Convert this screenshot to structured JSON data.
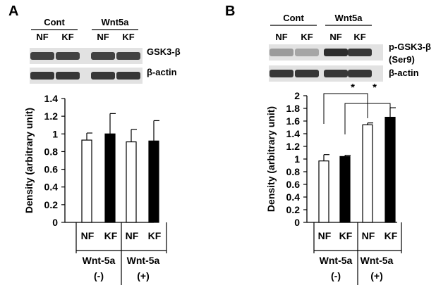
{
  "panels": [
    {
      "panel_label": "A",
      "blot": {
        "groups": [
          "Cont",
          "Wnt5a"
        ],
        "lanes": [
          "NF",
          "KF",
          "NF",
          "KF"
        ],
        "bands": [
          "GSK3-β",
          "β-actin"
        ],
        "intensity": [
          [
            0.85,
            0.85,
            0.85,
            0.85
          ],
          [
            0.9,
            0.9,
            0.9,
            0.9
          ]
        ]
      },
      "chart_data": {
        "type": "bar",
        "ylabel": "Density (arbitrary unit)",
        "ylim": [
          0,
          1.4
        ],
        "yticks": [
          "0",
          "0.2",
          "0.4",
          "0.6",
          "0.8",
          "1",
          "1.2",
          "1.4"
        ],
        "categories": [
          "NF",
          "KF",
          "NF",
          "KF"
        ],
        "groups": [
          {
            "label": "Wnt-5a",
            "sub": "(-)"
          },
          {
            "label": "Wnt-5a",
            "sub": "(+)"
          }
        ],
        "values": [
          0.93,
          1.0,
          0.91,
          0.92
        ],
        "errors": [
          0.08,
          0.23,
          0.14,
          0.23
        ],
        "fills": [
          "#ffffff",
          "#000000",
          "#ffffff",
          "#000000"
        ],
        "significance": []
      }
    },
    {
      "panel_label": "B",
      "blot": {
        "groups": [
          "Cont",
          "Wnt5a"
        ],
        "lanes": [
          "NF",
          "KF",
          "NF",
          "KF"
        ],
        "bands": [
          "p-GSK3-β",
          "(Ser9)",
          "β-actin"
        ],
        "intensity": [
          [
            0.4,
            0.35,
            0.95,
            0.9
          ],
          [
            0.9,
            0.9,
            0.9,
            0.9
          ]
        ]
      },
      "chart_data": {
        "type": "bar",
        "ylabel": "Density (arbitrary unit)",
        "ylim": [
          0,
          2
        ],
        "yticks": [
          "0",
          "0.2",
          "0.4",
          "0.6",
          "0.8",
          "1",
          "1.2",
          "1.4",
          "1.6",
          "1.8",
          "2"
        ],
        "categories": [
          "NF",
          "KF",
          "NF",
          "KF"
        ],
        "groups": [
          {
            "label": "Wnt-5a",
            "sub": "(-)"
          },
          {
            "label": "Wnt-5a",
            "sub": "(+)"
          }
        ],
        "values": [
          0.97,
          1.04,
          1.54,
          1.66
        ],
        "errors": [
          0.1,
          0.02,
          0.03,
          0.15
        ],
        "fills": [
          "#ffffff",
          "#000000",
          "#ffffff",
          "#000000"
        ],
        "significance": [
          {
            "from": 0,
            "to": 2,
            "label": "*"
          },
          {
            "from": 1,
            "to": 3,
            "label": "*"
          }
        ]
      }
    }
  ]
}
